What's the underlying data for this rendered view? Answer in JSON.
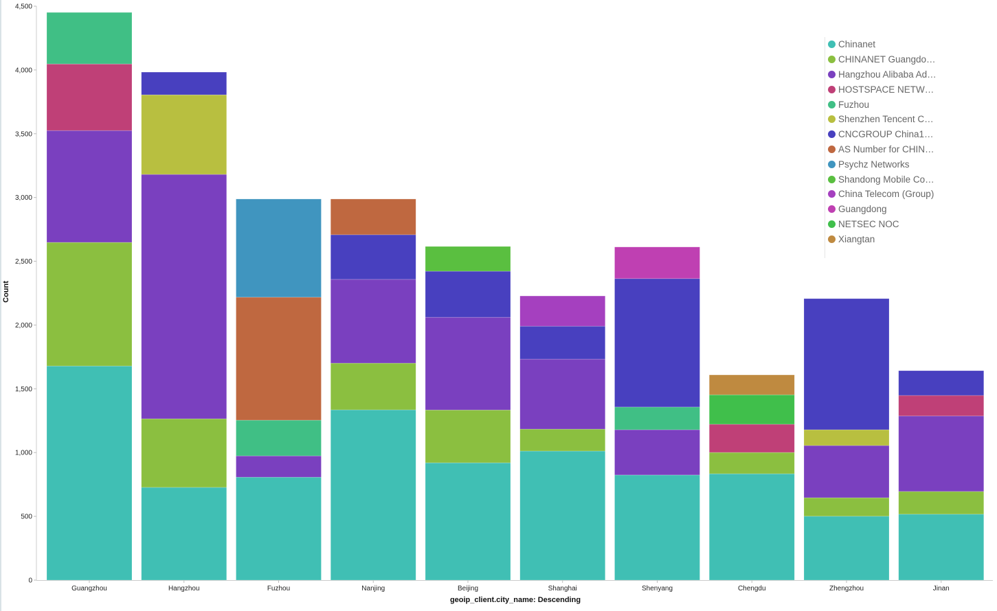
{
  "chart_data": {
    "type": "bar",
    "stacked": true,
    "title": "",
    "xlabel": "geoip_client.city_name: Descending",
    "ylabel": "Count",
    "ylim": [
      0,
      4500
    ],
    "yticks": [
      0,
      500,
      1000,
      1500,
      2000,
      2500,
      3000,
      3500,
      4000,
      4500
    ],
    "ytick_labels": [
      "0",
      "500",
      "1,000",
      "1,500",
      "2,000",
      "2,500",
      "3,000",
      "3,500",
      "4,000",
      "4,500"
    ],
    "grid": false,
    "legend_position": "top-right",
    "categories": [
      "Guangzhou",
      "Hangzhou",
      "Fuzhou",
      "Nanjing",
      "Beijing",
      "Shanghai",
      "Shenyang",
      "Chengdu",
      "Zhengzhou",
      "Jinan"
    ],
    "series": [
      {
        "name": "Chinanet",
        "color": "#40bfb4",
        "values": [
          1679,
          727,
          807,
          1335,
          920,
          1012,
          824,
          834,
          501,
          517
        ]
      },
      {
        "name": "CHINANET Guangdo…",
        "color": "#8bbf40",
        "values": [
          969,
          538,
          0,
          366,
          414,
          172,
          0,
          167,
          145,
          178
        ]
      },
      {
        "name": "Hangzhou Alibaba Ad…",
        "color": "#7a40bf",
        "values": [
          877,
          1916,
          167,
          657,
          727,
          549,
          355,
          0,
          409,
          592
        ]
      },
      {
        "name": "HOSTSPACE NETW…",
        "color": "#bf4077",
        "values": [
          522,
          0,
          0,
          0,
          0,
          0,
          0,
          221,
          0,
          161
        ]
      },
      {
        "name": "Fuzhou",
        "color": "#40bf85",
        "values": [
          404,
          0,
          280,
          0,
          0,
          0,
          178,
          0,
          0,
          0
        ]
      },
      {
        "name": "Shenzhen Tencent C…",
        "color": "#b8bf40",
        "values": [
          0,
          624,
          0,
          0,
          0,
          0,
          0,
          0,
          124,
          0
        ]
      },
      {
        "name": "CNCGROUP China1…",
        "color": "#4840bf",
        "values": [
          0,
          178,
          0,
          350,
          361,
          258,
          1007,
          0,
          1028,
          194
        ]
      },
      {
        "name": "AS Number for CHIN…",
        "color": "#bf6840",
        "values": [
          0,
          0,
          964,
          280,
          0,
          0,
          0,
          0,
          0,
          0
        ]
      },
      {
        "name": "Psychz Networks",
        "color": "#4095bf",
        "values": [
          0,
          0,
          770,
          0,
          0,
          0,
          0,
          0,
          0,
          0
        ]
      },
      {
        "name": "Shandong Mobile Co…",
        "color": "#5abf40",
        "values": [
          0,
          0,
          0,
          0,
          194,
          0,
          0,
          0,
          0,
          0
        ]
      },
      {
        "name": "China Telecom (Group)",
        "color": "#a540bf",
        "values": [
          0,
          0,
          0,
          0,
          0,
          237,
          0,
          0,
          0,
          0
        ]
      },
      {
        "name": "Guangdong",
        "color": "#bf40b2",
        "values": [
          0,
          0,
          0,
          0,
          0,
          0,
          248,
          0,
          0,
          0
        ]
      },
      {
        "name": "NETSEC NOC",
        "color": "#40bf4b",
        "values": [
          0,
          0,
          0,
          0,
          0,
          0,
          0,
          231,
          0,
          0
        ]
      },
      {
        "name": "Xiangtan",
        "color": "#bf8a40",
        "values": [
          0,
          0,
          0,
          0,
          0,
          0,
          0,
          156,
          0,
          0
        ]
      }
    ]
  }
}
